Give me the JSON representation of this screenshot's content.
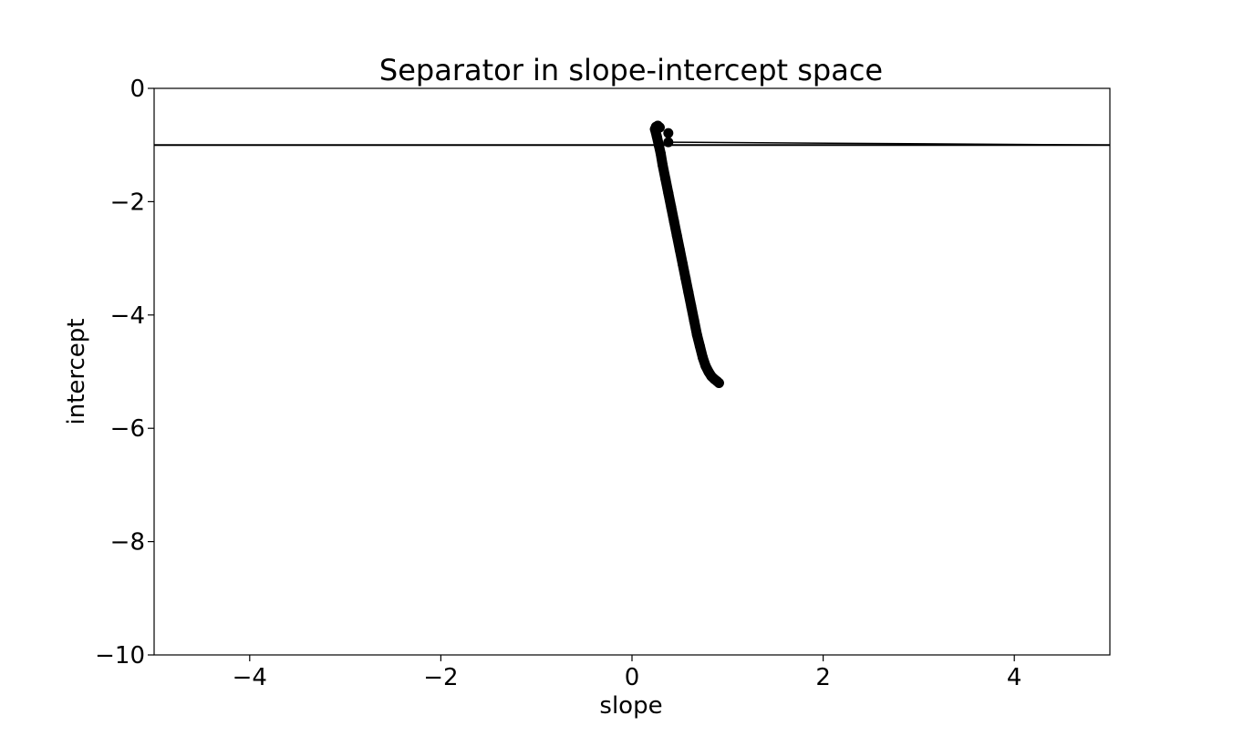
{
  "chart_data": {
    "type": "scatter",
    "title": "Separator in slope-intercept space",
    "xlabel": "slope",
    "ylabel": "intercept",
    "xlim": [
      -5,
      5
    ],
    "ylim": [
      -10,
      0
    ],
    "xticks": [
      -4,
      -2,
      0,
      2,
      4
    ],
    "yticks": [
      0,
      -2,
      -4,
      -6,
      -8,
      -10
    ],
    "xtick_labels": [
      "−4",
      "−2",
      "0",
      "2",
      "4"
    ],
    "ytick_labels": [
      "0",
      "−2",
      "−4",
      "−6",
      "−8",
      "−10"
    ],
    "grid": false,
    "hline": {
      "y": -1
    },
    "trajectory_line": {
      "x": [
        0.38,
        5.0
      ],
      "y": [
        -0.95,
        -1.0
      ]
    },
    "series": [
      {
        "marker_color": "#000000",
        "points": [
          {
            "x": 0.25,
            "y": -0.68
          },
          {
            "x": 0.27,
            "y": -0.66
          },
          {
            "x": 0.29,
            "y": -0.69
          },
          {
            "x": 0.24,
            "y": -0.72
          },
          {
            "x": 0.38,
            "y": -0.79
          },
          {
            "x": 0.38,
            "y": -0.95
          },
          {
            "x": 0.26,
            "y": -0.85
          },
          {
            "x": 0.28,
            "y": -1.0
          },
          {
            "x": 0.3,
            "y": -1.15
          },
          {
            "x": 0.32,
            "y": -1.35
          },
          {
            "x": 0.35,
            "y": -1.6
          },
          {
            "x": 0.38,
            "y": -1.85
          },
          {
            "x": 0.41,
            "y": -2.1
          },
          {
            "x": 0.44,
            "y": -2.35
          },
          {
            "x": 0.47,
            "y": -2.6
          },
          {
            "x": 0.5,
            "y": -2.85
          },
          {
            "x": 0.53,
            "y": -3.1
          },
          {
            "x": 0.56,
            "y": -3.35
          },
          {
            "x": 0.59,
            "y": -3.6
          },
          {
            "x": 0.62,
            "y": -3.85
          },
          {
            "x": 0.65,
            "y": -4.1
          },
          {
            "x": 0.68,
            "y": -4.35
          },
          {
            "x": 0.71,
            "y": -4.55
          },
          {
            "x": 0.74,
            "y": -4.75
          },
          {
            "x": 0.77,
            "y": -4.9
          },
          {
            "x": 0.8,
            "y": -5.0
          },
          {
            "x": 0.83,
            "y": -5.08
          },
          {
            "x": 0.86,
            "y": -5.13
          },
          {
            "x": 0.89,
            "y": -5.17
          },
          {
            "x": 0.91,
            "y": -5.2
          }
        ]
      }
    ]
  }
}
